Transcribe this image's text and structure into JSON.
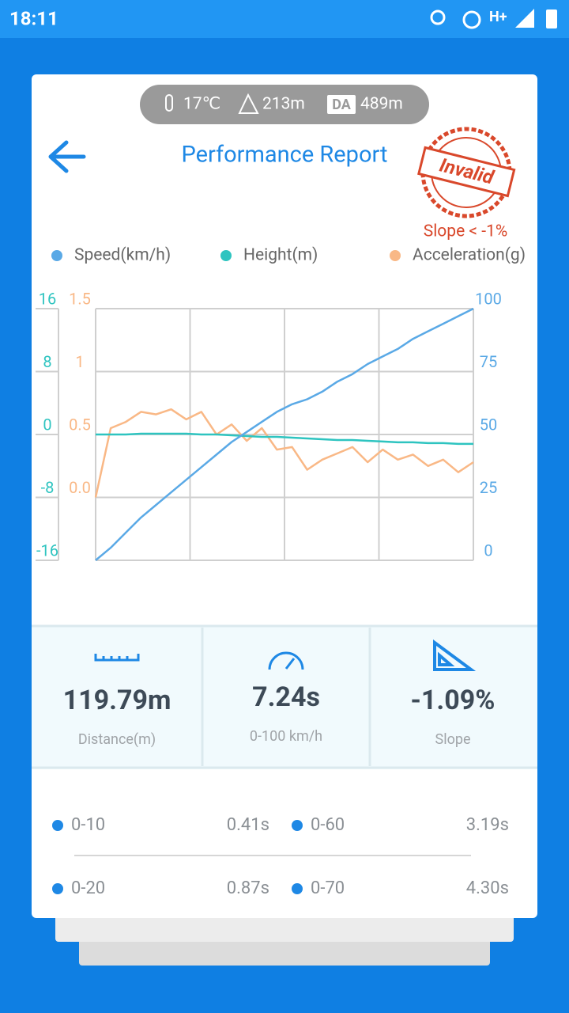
{
  "status_bar": {
    "time": "18:11",
    "network": "H+"
  },
  "conditions": {
    "temperature": "17℃",
    "altitude": "213m",
    "da_label": "DA",
    "density_altitude": "489m"
  },
  "header": {
    "title": "Performance Report",
    "stamp": "Invalid",
    "stamp_note": "Slope < -1%"
  },
  "chart_data": {
    "type": "line",
    "series": [
      {
        "name": "Speed(km/h)",
        "color": "#5aa9e6",
        "axis": "y",
        "values": [
          0,
          5,
          11,
          17,
          22,
          27,
          32,
          37,
          42,
          47,
          51,
          55,
          59,
          62,
          64,
          67,
          71,
          74,
          78,
          81,
          84,
          88,
          91,
          94,
          97,
          100
        ]
      },
      {
        "name": "Height(m)",
        "color": "#2ec4c0",
        "axis": "y2",
        "values": [
          0,
          0,
          0,
          0.1,
          0.1,
          0.1,
          0.1,
          0,
          0,
          -0.1,
          -0.2,
          -0.3,
          -0.3,
          -0.4,
          -0.5,
          -0.6,
          -0.7,
          -0.7,
          -0.8,
          -0.9,
          -1,
          -1,
          -1.1,
          -1.1,
          -1.2,
          -1.2
        ]
      },
      {
        "name": "Acceleration(g)",
        "color": "#f9b886",
        "axis": "y3",
        "values": [
          0,
          0.55,
          0.6,
          0.68,
          0.66,
          0.7,
          0.62,
          0.68,
          0.5,
          0.58,
          0.45,
          0.55,
          0.38,
          0.4,
          0.22,
          0.3,
          0.35,
          0.4,
          0.28,
          0.38,
          0.3,
          0.34,
          0.25,
          0.3,
          0.2,
          0.28
        ]
      }
    ],
    "ylim": [
      0,
      100
    ],
    "yticks": [
      0,
      25,
      50,
      75,
      100
    ],
    "y2lim": [
      -16,
      16
    ],
    "y2ticks": [
      -16,
      -8,
      0,
      8,
      16
    ],
    "y3lim": [
      -0.5,
      1.5
    ],
    "y3ticks": [
      {
        "value": 0,
        "label": "0.0"
      },
      0.5,
      1,
      1.5
    ],
    "grid": true
  },
  "stats": [
    {
      "value": "119.79m",
      "label": "Distance(m)"
    },
    {
      "value": "7.24s",
      "label": "0-100 km/h"
    },
    {
      "value": "-1.09%",
      "label": "Slope"
    }
  ],
  "splits": [
    {
      "range": "0-10",
      "time": "0.41s"
    },
    {
      "range": "0-60",
      "time": "3.19s"
    },
    {
      "range": "0-20",
      "time": "0.87s"
    },
    {
      "range": "0-70",
      "time": "4.30s"
    }
  ]
}
